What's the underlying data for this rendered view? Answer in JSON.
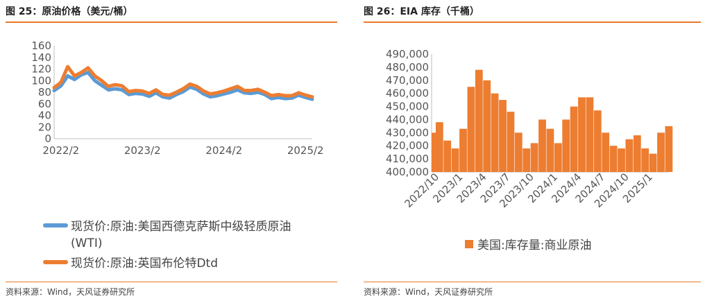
{
  "left": {
    "title": "图 25：原油价格（美元/桶）",
    "source": "资料来源：Wind，天风证券研究所",
    "colors": {
      "wti": "#5b9bd5",
      "brent": "#ed7d31",
      "accent": "#e8782a"
    }
  },
  "right": {
    "title": "图 26：EIA 库存（千桶）",
    "source": "资料来源：Wind，天风证券研究所",
    "colors": {
      "bar": "#ed7d31",
      "accent": "#e8782a"
    }
  },
  "chart_data": [
    {
      "type": "line",
      "x_ticks": [
        "2022/2",
        "2023/2",
        "2024/2",
        "2025/2"
      ],
      "y_ticks": [
        "0",
        "20",
        "40",
        "60",
        "80",
        "100",
        "120",
        "140",
        "160"
      ],
      "ylim": [
        0,
        160
      ],
      "legend_position": "bottom",
      "series": [
        {
          "name": "现货价:原油:美国西德克萨斯中级轻质原油",
          "name_line2": "(WTI)",
          "x": [
            "2022/1",
            "2022/2",
            "2022/3",
            "2022/4",
            "2022/5",
            "2022/6",
            "2022/7",
            "2022/8",
            "2022/9",
            "2022/10",
            "2022/11",
            "2022/12",
            "2023/1",
            "2023/2",
            "2023/3",
            "2023/4",
            "2023/5",
            "2023/6",
            "2023/7",
            "2023/8",
            "2023/9",
            "2023/10",
            "2023/11",
            "2023/12",
            "2024/1",
            "2024/2",
            "2024/3",
            "2024/4",
            "2024/5",
            "2024/6",
            "2024/7",
            "2024/8",
            "2024/9",
            "2024/10",
            "2024/11",
            "2024/12",
            "2025/1",
            "2025/2",
            "2025/3"
          ],
          "values": [
            83,
            91,
            108,
            102,
            110,
            114,
            100,
            92,
            84,
            86,
            84,
            76,
            78,
            77,
            73,
            79,
            72,
            70,
            76,
            81,
            89,
            85,
            77,
            72,
            74,
            77,
            80,
            84,
            79,
            78,
            80,
            76,
            69,
            71,
            69,
            70,
            75,
            71,
            68
          ]
        },
        {
          "name": "现货价:原油:英国布伦特Dtd",
          "x": [
            "2022/1",
            "2022/2",
            "2022/3",
            "2022/4",
            "2022/5",
            "2022/6",
            "2022/7",
            "2022/8",
            "2022/9",
            "2022/10",
            "2022/11",
            "2022/12",
            "2023/1",
            "2023/2",
            "2023/3",
            "2023/4",
            "2023/5",
            "2023/6",
            "2023/7",
            "2023/8",
            "2023/9",
            "2023/10",
            "2023/11",
            "2023/12",
            "2024/1",
            "2024/2",
            "2024/3",
            "2024/4",
            "2024/5",
            "2024/6",
            "2024/7",
            "2024/8",
            "2024/9",
            "2024/10",
            "2024/11",
            "2024/12",
            "2025/1",
            "2025/2",
            "2025/3"
          ],
          "values": [
            88,
            97,
            124,
            108,
            114,
            122,
            108,
            100,
            90,
            93,
            91,
            81,
            83,
            82,
            78,
            84,
            76,
            75,
            80,
            86,
            94,
            90,
            82,
            77,
            79,
            82,
            86,
            90,
            83,
            83,
            85,
            80,
            74,
            76,
            74,
            74,
            79,
            75,
            72
          ]
        }
      ]
    },
    {
      "type": "bar",
      "x_ticks": [
        "2022/10",
        "2023/1",
        "2023/4",
        "2023/7",
        "2023/10",
        "2024/1",
        "2024/4",
        "2024/7",
        "2024/10",
        "2025/1"
      ],
      "y_ticks": [
        "400,000",
        "410,000",
        "420,000",
        "430,000",
        "440,000",
        "450,000",
        "460,000",
        "470,000",
        "480,000",
        "490,000"
      ],
      "ylim": [
        400000,
        490000
      ],
      "legend_position": "bottom",
      "series": [
        {
          "name": "美国:库存量:商业原油",
          "x": [
            "2022/09",
            "2022/10",
            "2022/11",
            "2022/12",
            "2023/01",
            "2023/02",
            "2023/03",
            "2023/04",
            "2023/05",
            "2023/06",
            "2023/07",
            "2023/08",
            "2023/09",
            "2023/10",
            "2023/11",
            "2023/12",
            "2024/01",
            "2024/02",
            "2024/03",
            "2024/04",
            "2024/05",
            "2024/06",
            "2024/07",
            "2024/08",
            "2024/09",
            "2024/10",
            "2024/11",
            "2024/12",
            "2025/01",
            "2025/02",
            "2025/03"
          ],
          "values": [
            430000,
            438000,
            424000,
            418000,
            433000,
            465000,
            478000,
            470000,
            460000,
            455000,
            446000,
            430000,
            418000,
            422000,
            440000,
            433000,
            422000,
            440000,
            450000,
            457000,
            457000,
            447000,
            430000,
            420000,
            418000,
            425000,
            428000,
            418000,
            414000,
            430000,
            435000
          ]
        }
      ]
    }
  ]
}
